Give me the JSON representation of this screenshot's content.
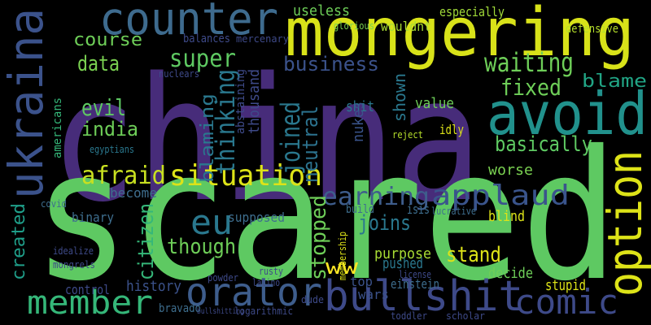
{
  "words": [
    "china",
    "scared",
    "mongering",
    "counter",
    "ukraina",
    "avoid",
    "option",
    "bullshit",
    "orator",
    "comic",
    "member",
    "situation",
    "applaud",
    "earning",
    "afraid",
    "waiting",
    "fixed",
    "business",
    "super",
    "data",
    "course",
    "evil",
    "india",
    "basically",
    "blame",
    "joined",
    "neutral",
    "thinking",
    "blaming",
    "eu",
    "though",
    "joins",
    "stand",
    "stopped",
    "citizen",
    "created",
    "ww",
    "useless",
    "wouldnt",
    "especially",
    "defensive",
    "worse",
    "value",
    "shit",
    "shown",
    "history",
    "control",
    "binary",
    "become",
    "supposed",
    "purpose",
    "decide",
    "blind",
    "pushed",
    "stupid",
    "top",
    "wars",
    "isis",
    "thousand",
    "abstaining",
    "nukes",
    "mercenary",
    "balances",
    "nuclears",
    "idly",
    "reject",
    "einstein",
    "americans",
    "egyptians",
    "covid",
    "build",
    "lucrative",
    "license",
    "dude",
    "scholar",
    "toddler",
    "logarithmic",
    "bravado",
    "bullshitting",
    "powder",
    "rusty",
    "latino",
    "idealize",
    "mongrels",
    "glorious",
    "membership"
  ]
}
